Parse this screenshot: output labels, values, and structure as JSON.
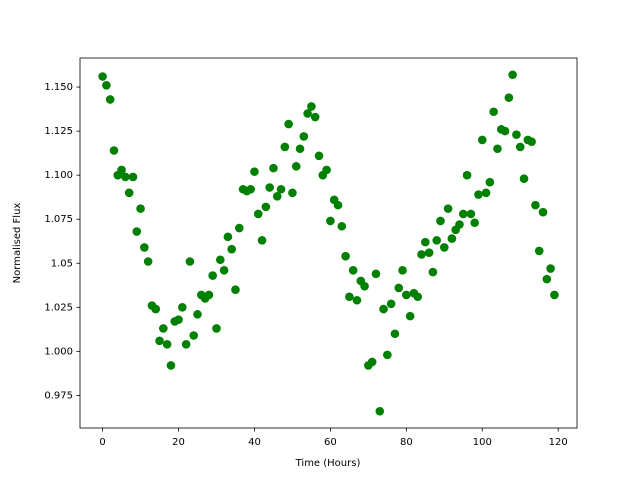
{
  "chart_data": {
    "type": "scatter",
    "xlabel": "Time (Hours)",
    "ylabel": "Normalised Flux",
    "color": "#008000",
    "x": [
      0,
      1,
      2,
      3,
      4,
      5,
      6,
      7,
      8,
      9,
      10,
      11,
      12,
      13,
      14,
      15,
      16,
      17,
      18,
      19,
      20,
      21,
      22,
      23,
      24,
      25,
      26,
      27,
      28,
      29,
      30,
      31,
      32,
      33,
      34,
      35,
      36,
      37,
      38,
      39,
      40,
      41,
      42,
      43,
      44,
      45,
      46,
      47,
      48,
      49,
      50,
      51,
      52,
      53,
      54,
      55,
      56,
      57,
      58,
      59,
      60,
      61,
      62,
      63,
      64,
      65,
      66,
      67,
      68,
      69,
      70,
      71,
      72,
      73,
      74,
      75,
      76,
      77,
      78,
      79,
      80,
      81,
      82,
      83,
      84,
      85,
      86,
      87,
      88,
      89,
      90,
      91,
      92,
      93,
      94,
      95,
      96,
      97,
      98,
      99,
      100,
      101,
      102,
      103,
      104,
      105,
      106,
      107,
      108,
      109,
      110,
      111,
      112,
      113,
      114,
      115,
      116,
      117,
      118,
      119
    ],
    "values": [
      1.156,
      1.151,
      1.143,
      1.114,
      1.1,
      1.103,
      1.099,
      1.09,
      1.099,
      1.068,
      1.081,
      1.059,
      1.051,
      1.026,
      1.024,
      1.006,
      1.013,
      1.004,
      0.992,
      1.017,
      1.018,
      1.025,
      1.004,
      1.051,
      1.009,
      1.021,
      1.032,
      1.03,
      1.032,
      1.043,
      1.013,
      1.052,
      1.046,
      1.065,
      1.058,
      1.035,
      1.07,
      1.092,
      1.091,
      1.092,
      1.102,
      1.078,
      1.063,
      1.082,
      1.093,
      1.104,
      1.088,
      1.092,
      1.116,
      1.129,
      1.09,
      1.105,
      1.115,
      1.122,
      1.135,
      1.139,
      1.133,
      1.111,
      1.1,
      1.103,
      1.074,
      1.086,
      1.083,
      1.071,
      1.054,
      1.031,
      1.046,
      1.029,
      1.04,
      1.037,
      0.992,
      0.994,
      1.044,
      0.966,
      1.024,
      0.998,
      1.027,
      1.01,
      1.036,
      1.046,
      1.032,
      1.02,
      1.033,
      1.031,
      1.055,
      1.062,
      1.056,
      1.045,
      1.063,
      1.074,
      1.059,
      1.081,
      1.064,
      1.069,
      1.072,
      1.078,
      1.1,
      1.078,
      1.073,
      1.089,
      1.12,
      1.09,
      1.096,
      1.136,
      1.115,
      1.126,
      1.125,
      1.144,
      1.157,
      1.123,
      1.116,
      1.098,
      1.12,
      1.119,
      1.083,
      1.057,
      1.079,
      1.041,
      1.047,
      1.032
    ],
    "xlim": [
      -5.95,
      124.95
    ],
    "xticks": [
      0,
      20,
      40,
      60,
      80,
      100,
      120
    ],
    "ylim": [
      0.9565,
      1.1665
    ],
    "yticks": [
      0.975,
      1.025,
      1.05,
      1.075,
      1.125,
      {
        "value": 1.0,
        "label": "1.000"
      },
      {
        "value": 1.1,
        "label": "1.100"
      },
      {
        "value": 1.15,
        "label": "1.150"
      }
    ]
  }
}
